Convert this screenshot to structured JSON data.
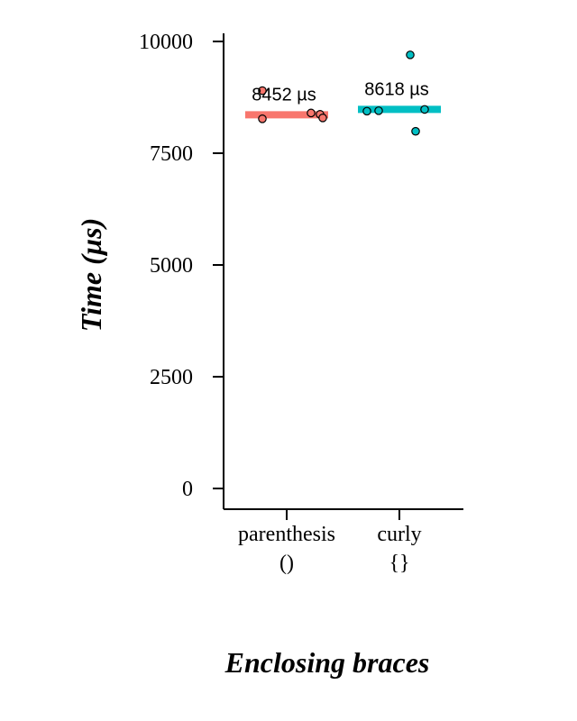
{
  "chart_data": {
    "type": "scatter",
    "xlabel": "Enclosing braces",
    "ylabel": "Time (µs)",
    "ylim": [
      0,
      10000
    ],
    "yticks": [
      0,
      2500,
      5000,
      7500,
      10000
    ],
    "grid": false,
    "categories": [
      {
        "line1": "parenthesis",
        "line2": "()"
      },
      {
        "line1": "curly",
        "line2": "{}"
      }
    ],
    "series": [
      {
        "category_index": 0,
        "color": "#F8766D",
        "summary_value": 8360,
        "label": "8452 µs",
        "points": [
          {
            "jitter": -0.27,
            "value": 8900
          },
          {
            "jitter": -0.27,
            "value": 8270
          },
          {
            "jitter": 0.27,
            "value": 8400
          },
          {
            "jitter": 0.37,
            "value": 8370
          },
          {
            "jitter": 0.4,
            "value": 8290
          }
        ]
      },
      {
        "category_index": 1,
        "color": "#00BFC4",
        "summary_value": 8480,
        "label": "8618 µs",
        "points": [
          {
            "jitter": -0.36,
            "value": 8440
          },
          {
            "jitter": -0.23,
            "value": 8450
          },
          {
            "jitter": 0.12,
            "value": 9700
          },
          {
            "jitter": 0.18,
            "value": 7990
          },
          {
            "jitter": 0.28,
            "value": 8480
          }
        ]
      }
    ]
  }
}
